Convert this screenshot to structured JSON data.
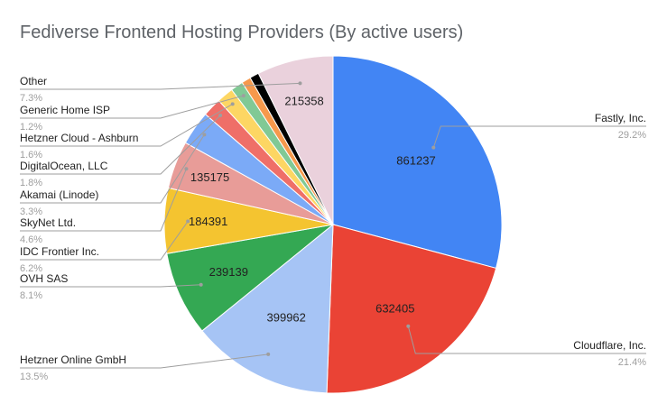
{
  "chart_data": {
    "type": "pie",
    "title": "Fediverse Frontend Hosting Providers (By active users)",
    "start_angle_deg": 0,
    "direction": "clockwise",
    "slices": [
      {
        "name": "Fastly, Inc.",
        "value": 861237,
        "percent": "29.2%",
        "color": "#4285f4",
        "value_label": "861237"
      },
      {
        "name": "Cloudflare, Inc.",
        "value": 632405,
        "percent": "21.4%",
        "color": "#ea4335",
        "value_label": "632405"
      },
      {
        "name": "Hetzner Online GmbH",
        "value": 399962,
        "percent": "13.5%",
        "color": "#a6c4f5",
        "value_label": "399962"
      },
      {
        "name": "OVH SAS",
        "value": 239139,
        "percent": "8.1%",
        "color": "#34a853",
        "value_label": "239139"
      },
      {
        "name": "IDC Frontier Inc.",
        "value": 184391,
        "percent": "6.2%",
        "color": "#f4c430",
        "value_label": "184391"
      },
      {
        "name": "SkyNet Ltd.",
        "value": 135175,
        "percent": "4.6%",
        "color": "#e89c98",
        "value_label": "135175"
      },
      {
        "name": "Akamai (Linode)",
        "value": 97000,
        "percent": "3.3%",
        "color": "#7baaf7",
        "value_label": ""
      },
      {
        "name": "DigitalOcean, LLC",
        "value": 53100,
        "percent": "1.8%",
        "color": "#ef6f68",
        "value_label": ""
      },
      {
        "name": "Hetzner Cloud - Ashburn",
        "value": 47200,
        "percent": "1.6%",
        "color": "#fdd663",
        "value_label": ""
      },
      {
        "name": "Generic Home ISP",
        "value": 35400,
        "percent": "1.2%",
        "color": "#81c995",
        "value_label": ""
      },
      {
        "name": "",
        "value": 26000,
        "percent": "",
        "color": "#f6994c",
        "value_label": ""
      },
      {
        "name": "",
        "value": 26000,
        "percent": "",
        "color": "#000000",
        "value_label": ""
      },
      {
        "name": "Other",
        "value": 215358,
        "percent": "7.3%",
        "color": "#ead1dc",
        "value_label": "215358"
      }
    ]
  }
}
